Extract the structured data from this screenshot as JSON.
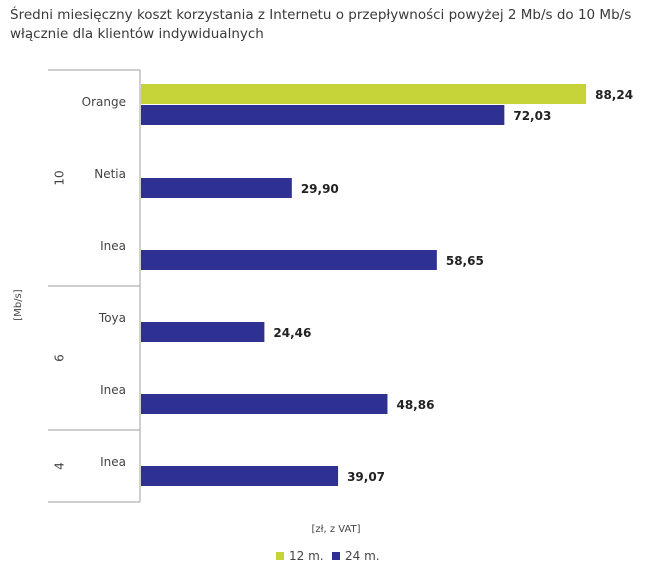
{
  "chart_data": {
    "type": "bar",
    "orientation": "horizontal",
    "title": "Średni miesięczny koszt korzystania z Internetu o przepływności powyżej 2 Mb/s do 10 Mb/s włącznie dla klientów indywidualnych",
    "xlabel": "[zł, z VAT]",
    "ylabel": "[Mb/s]",
    "xlim": [
      0,
      90
    ],
    "groups": [
      {
        "label": "10",
        "categories": [
          "Orange",
          "Netia",
          "Inea"
        ]
      },
      {
        "label": "6",
        "categories": [
          "Toya",
          "Inea"
        ]
      },
      {
        "label": "4",
        "categories": [
          "Inea"
        ]
      }
    ],
    "categories": [
      "Orange",
      "Netia",
      "Inea",
      "Toya",
      "Inea",
      "Inea"
    ],
    "series": [
      {
        "name": "12 m.",
        "color": "#c6d43a",
        "values": [
          88.24,
          null,
          null,
          null,
          null,
          null
        ],
        "labels": [
          "88,24",
          null,
          null,
          null,
          null,
          null
        ]
      },
      {
        "name": "24 m.",
        "color": "#2e3192",
        "values": [
          72.03,
          29.9,
          58.65,
          24.46,
          48.86,
          39.07
        ],
        "labels": [
          "72,03",
          "29,90",
          "58,65",
          "24,46",
          "48,86",
          "39,07"
        ]
      }
    ],
    "legend_position": "bottom"
  }
}
